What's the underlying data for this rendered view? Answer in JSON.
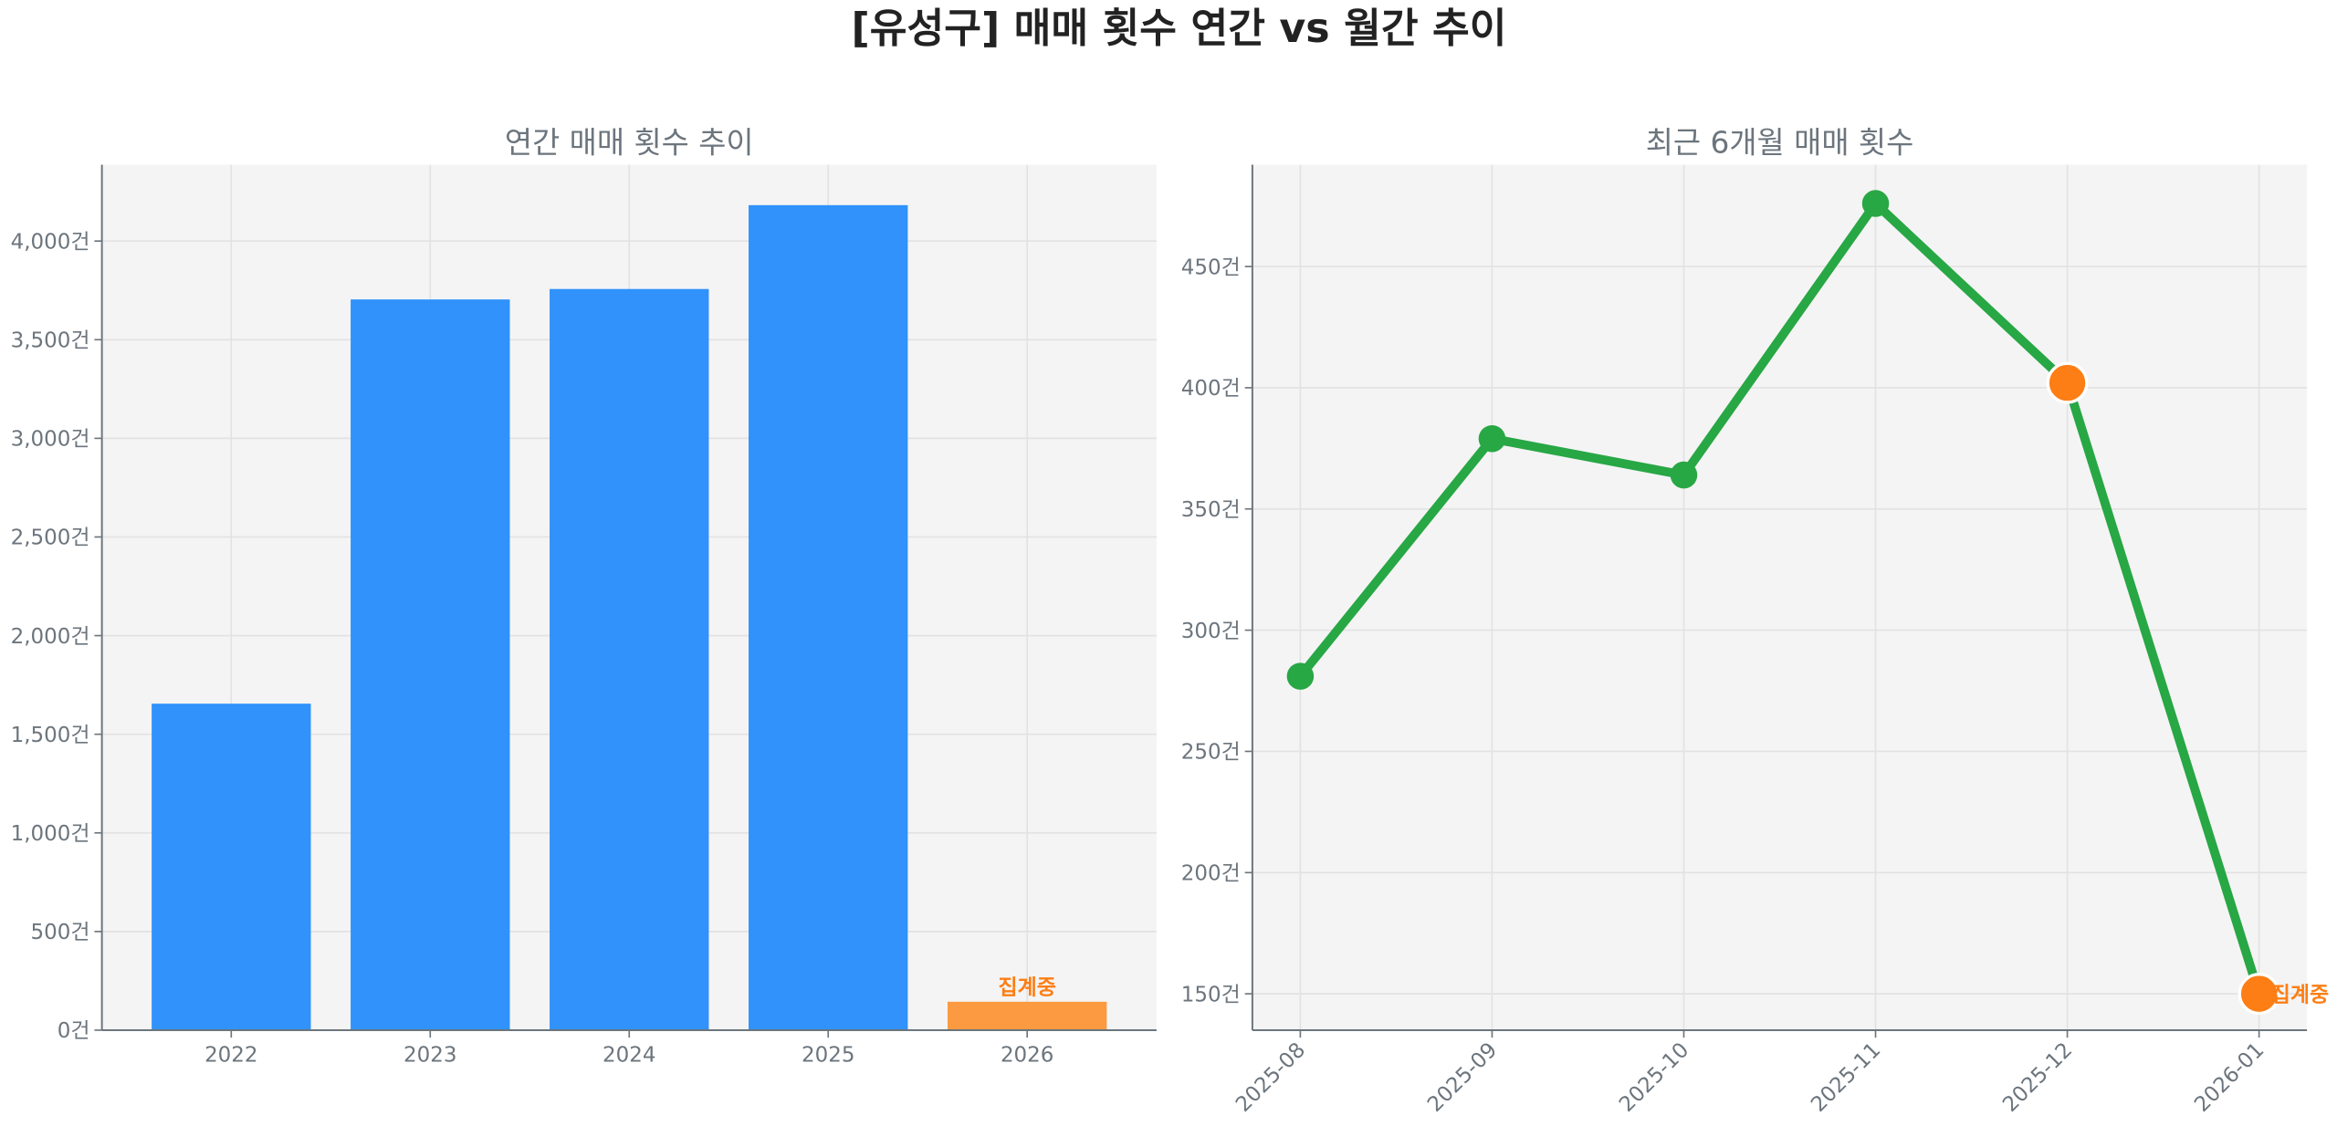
{
  "title": "[유성구] 매매 횟수 연간 vs 월간 추이",
  "colors": {
    "bar": "#3092FA",
    "bar_partial": "#FB9A40",
    "line": "#28A745",
    "partial_point": "#FD7E14",
    "axes_bg": "#F4F4F4",
    "text": "#6c757d"
  },
  "chart_data": [
    {
      "type": "bar",
      "title": "연간 매매 횟수 추이",
      "categories": [
        "2022",
        "2023",
        "2024",
        "2025",
        "2026"
      ],
      "values": [
        1655,
        3704,
        3757,
        4182,
        144
      ],
      "partial": [
        false,
        false,
        false,
        false,
        true
      ],
      "annotation": "집계중",
      "yticks": [
        0,
        500,
        1000,
        1500,
        2000,
        2500,
        3000,
        3500,
        4000
      ],
      "ytick_labels": [
        "0건",
        "500건",
        "1,000건",
        "1,500건",
        "2,000건",
        "2,500건",
        "3,000건",
        "3,500건",
        "4,000건"
      ],
      "ylim": [
        0,
        4387
      ],
      "xlim": [
        -0.65,
        4.65
      ],
      "grid": true
    },
    {
      "type": "line",
      "title": "최근 6개월 매매 횟수",
      "categories": [
        "2025-08",
        "2025-09",
        "2025-10",
        "2025-11",
        "2025-12",
        "2026-01"
      ],
      "values": [
        281,
        379,
        364,
        476,
        402,
        150
      ],
      "partial": [
        false,
        false,
        false,
        false,
        true,
        true
      ],
      "annotation": "집계중",
      "yticks": [
        150,
        200,
        250,
        300,
        350,
        400,
        450
      ],
      "ytick_labels": [
        "150건",
        "200건",
        "250건",
        "300건",
        "350건",
        "400건",
        "450건"
      ],
      "ylim": [
        135,
        492
      ],
      "xlim": [
        -0.25,
        5.25
      ],
      "grid": true
    }
  ]
}
